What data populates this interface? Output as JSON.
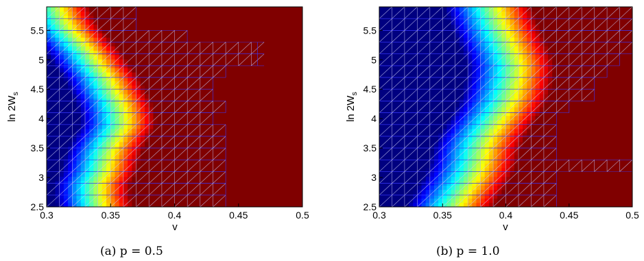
{
  "chart_data": [
    {
      "type": "heatmap",
      "id": "a",
      "caption": "(a) p = 0.5",
      "xlabel": "v",
      "ylabel": "ln 2W_s",
      "xlim": [
        0.3,
        0.5
      ],
      "ylim": [
        2.5,
        5.9
      ],
      "xticks": [
        "0.3",
        "0.35",
        "0.4",
        "0.45",
        "0.5"
      ],
      "yticks": [
        "2.5",
        "3",
        "3.5",
        "4",
        "4.5",
        "5",
        "5.5"
      ],
      "colormap": "jet",
      "boundary": [
        [
          2.5,
          0.338
        ],
        [
          2.7,
          0.336
        ],
        [
          2.9,
          0.336
        ],
        [
          3.1,
          0.341
        ],
        [
          3.3,
          0.343
        ],
        [
          3.5,
          0.346
        ],
        [
          3.7,
          0.351
        ],
        [
          3.9,
          0.356
        ],
        [
          4.1,
          0.355
        ],
        [
          4.3,
          0.352
        ],
        [
          4.5,
          0.347
        ],
        [
          4.7,
          0.343
        ],
        [
          4.9,
          0.336
        ],
        [
          5.1,
          0.33
        ],
        [
          5.3,
          0.322
        ],
        [
          5.5,
          0.314
        ],
        [
          5.7,
          0.308
        ],
        [
          5.9,
          0.304
        ]
      ],
      "width": 0.03,
      "mesh_extent": [
        [
          2.5,
          0.44
        ],
        [
          2.7,
          0.44
        ],
        [
          2.9,
          0.44
        ],
        [
          3.1,
          0.44
        ],
        [
          3.3,
          0.44
        ],
        [
          3.5,
          0.44
        ],
        [
          3.7,
          0.44
        ],
        [
          3.9,
          0.43
        ],
        [
          4.1,
          0.44
        ],
        [
          4.3,
          0.43
        ],
        [
          4.5,
          0.43
        ],
        [
          4.7,
          0.44
        ],
        [
          4.9,
          0.465
        ],
        [
          5.1,
          0.465
        ],
        [
          5.3,
          0.41
        ],
        [
          5.5,
          0.37
        ],
        [
          5.7,
          0.37
        ],
        [
          5.9,
          0.35
        ]
      ]
    },
    {
      "type": "heatmap",
      "id": "b",
      "caption": "(b) p = 1.0",
      "xlabel": "v",
      "ylabel": "ln 2W_s",
      "xlim": [
        0.3,
        0.5
      ],
      "ylim": [
        2.5,
        5.9
      ],
      "xticks": [
        "0.3",
        "0.35",
        "0.4",
        "0.45",
        "0.5"
      ],
      "yticks": [
        "2.5",
        "3",
        "3.5",
        "4",
        "4.5",
        "5",
        "5.5"
      ],
      "colormap": "jet",
      "boundary": [
        [
          2.5,
          0.356
        ],
        [
          2.7,
          0.361
        ],
        [
          2.9,
          0.367
        ],
        [
          3.1,
          0.372
        ],
        [
          3.3,
          0.375
        ],
        [
          3.5,
          0.377
        ],
        [
          3.7,
          0.381
        ],
        [
          3.9,
          0.387
        ],
        [
          4.1,
          0.393
        ],
        [
          4.3,
          0.398
        ],
        [
          4.5,
          0.401
        ],
        [
          4.7,
          0.403
        ],
        [
          4.9,
          0.404
        ],
        [
          5.1,
          0.401
        ],
        [
          5.3,
          0.397
        ],
        [
          5.5,
          0.393
        ],
        [
          5.7,
          0.389
        ],
        [
          5.9,
          0.386
        ]
      ],
      "width": 0.035,
      "mesh_extent": [
        [
          2.5,
          0.44
        ],
        [
          2.7,
          0.44
        ],
        [
          2.9,
          0.44
        ],
        [
          3.1,
          0.5
        ],
        [
          3.3,
          0.44
        ],
        [
          3.5,
          0.44
        ],
        [
          3.7,
          0.44
        ],
        [
          3.9,
          0.44
        ],
        [
          4.1,
          0.45
        ],
        [
          4.3,
          0.47
        ],
        [
          4.5,
          0.47
        ],
        [
          4.7,
          0.48
        ],
        [
          4.9,
          0.49
        ],
        [
          5.1,
          0.5
        ],
        [
          5.3,
          0.5
        ],
        [
          5.5,
          0.5
        ],
        [
          5.7,
          0.5
        ],
        [
          5.9,
          0.5
        ]
      ]
    }
  ]
}
